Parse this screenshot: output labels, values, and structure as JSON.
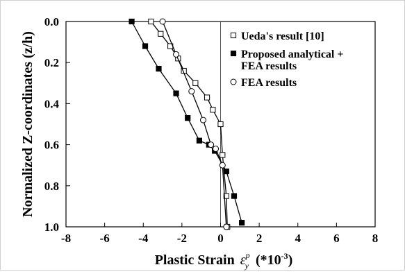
{
  "chart_data": {
    "type": "line",
    "title": "",
    "xlabel": "Plastic Strain",
    "xlabel_symbol": "ε",
    "xlabel_symbol_sup": "p",
    "xlabel_symbol_sub": "y",
    "xlabel_unit": "(*10",
    "xlabel_unit_exp": "-3",
    "xlabel_unit_close": ")",
    "ylabel": "Normalized Z-coordinates (z/h)",
    "xlim": [
      -8,
      8
    ],
    "ylim": [
      0.0,
      1.0
    ],
    "y_inverted": true,
    "xticks": [
      "-8",
      "-6",
      "-4",
      "-2",
      "0",
      "2",
      "4",
      "6",
      "8"
    ],
    "xtick_values": [
      -8,
      -6,
      -4,
      -2,
      0,
      2,
      4,
      6,
      8
    ],
    "yticks": [
      "0.0",
      "0.2",
      "0.4",
      "0.6",
      "0.8",
      "1.0"
    ],
    "ytick_values": [
      0.0,
      0.2,
      0.4,
      0.6,
      0.8,
      1.0
    ],
    "zero_line_x": 0,
    "grid": false,
    "legend_position": "top-right",
    "series": [
      {
        "name": "Ueda's result [10]",
        "marker": "open-square",
        "x": [
          -3.6,
          -3.1,
          -2.6,
          -2.2,
          -1.9,
          -1.3,
          -0.7,
          -0.4,
          0.0,
          0.1,
          0.3,
          0.35
        ],
        "y": [
          0.0,
          0.06,
          0.12,
          0.18,
          0.24,
          0.3,
          0.37,
          0.43,
          0.5,
          0.65,
          0.85,
          1.0
        ]
      },
      {
        "name": "Proposed analytical + FEA results",
        "marker": "filled-square",
        "x": [
          -4.6,
          -3.9,
          -3.2,
          -2.3,
          -1.7,
          -1.1,
          -0.6,
          -0.3,
          0.3,
          0.7,
          1.1
        ],
        "y": [
          0.0,
          0.12,
          0.23,
          0.35,
          0.47,
          0.58,
          0.6,
          0.63,
          0.73,
          0.85,
          0.98
        ]
      },
      {
        "name": "FEA results",
        "marker": "open-circle",
        "x": [
          -3.0,
          -2.3,
          -1.5,
          -0.9,
          -0.5,
          -0.25,
          0.1,
          0.3
        ],
        "y": [
          0.0,
          0.16,
          0.34,
          0.48,
          0.6,
          0.62,
          0.7,
          1.0
        ]
      }
    ]
  }
}
